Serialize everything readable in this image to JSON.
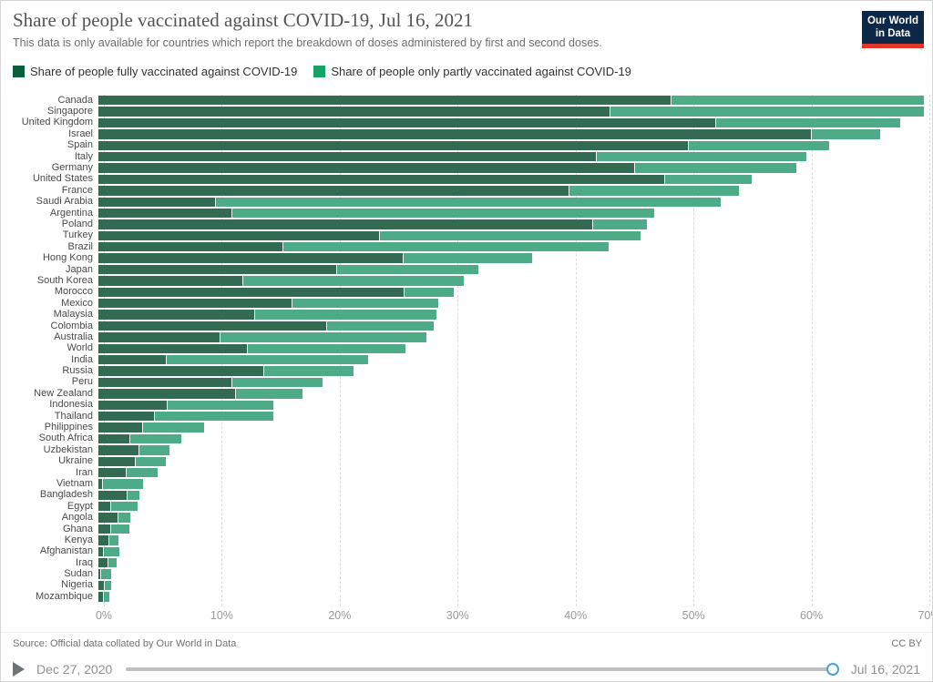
{
  "header": {
    "title": "Share of people vaccinated against COVID-19, Jul 16, 2021",
    "subtitle": "This data is only available for countries which report the breakdown of doses administered by first and second doses.",
    "logo": {
      "line1": "Our World",
      "line2": "in Data",
      "bg_color": "#0d2847",
      "stripe_color": "#e0362b"
    }
  },
  "legend": {
    "items": [
      {
        "label": "Share of people fully vaccinated against COVID-19",
        "color": "#0a5e3a"
      },
      {
        "label": "Share of people only partly vaccinated against COVID-19",
        "color": "#16a26b"
      }
    ]
  },
  "chart_data": {
    "type": "bar",
    "orientation": "horizontal",
    "stacked": true,
    "grid": "dashed-vertical",
    "xlim": [
      0,
      70
    ],
    "xticks": [
      0,
      10,
      20,
      30,
      40,
      50,
      60,
      70
    ],
    "xtick_suffix": "%",
    "categories": [
      "Canada",
      "Singapore",
      "United Kingdom",
      "Israel",
      "Spain",
      "Italy",
      "Germany",
      "United States",
      "France",
      "Saudi Arabia",
      "Argentina",
      "Poland",
      "Turkey",
      "Brazil",
      "Hong Kong",
      "Japan",
      "South Korea",
      "Morocco",
      "Mexico",
      "Malaysia",
      "Colombia",
      "Australia",
      "World",
      "India",
      "Russia",
      "Peru",
      "New Zealand",
      "Indonesia",
      "Thailand",
      "Philippines",
      "South Africa",
      "Uzbekistan",
      "Ukraine",
      "Iran",
      "Vietnam",
      "Bangladesh",
      "Egypt",
      "Angola",
      "Ghana",
      "Kenya",
      "Afghanistan",
      "Iraq",
      "Sudan",
      "Nigeria",
      "Mozambique"
    ],
    "series": [
      {
        "name": "Share of people fully vaccinated against COVID-19",
        "color": "#336a52",
        "values": [
          48.5,
          43.4,
          52.3,
          60.4,
          50.0,
          42.2,
          45.4,
          48.0,
          39.9,
          9.9,
          11.3,
          41.9,
          23.8,
          15.6,
          25.8,
          20.2,
          12.2,
          25.9,
          16.4,
          13.2,
          19.3,
          10.3,
          12.6,
          5.7,
          14.0,
          11.3,
          11.6,
          5.8,
          4.7,
          3.7,
          2.6,
          3.4,
          3.1,
          2.3,
          0.3,
          2.4,
          1.0,
          1.6,
          1.0,
          0.85,
          0.35,
          0.75,
          0.15,
          0.5,
          0.4
        ]
      },
      {
        "name": "Share of people only partly vaccinated against COVID-19",
        "color": "#4dab87",
        "values": [
          21.5,
          26.7,
          15.7,
          5.9,
          12.0,
          17.8,
          13.8,
          7.4,
          14.4,
          42.9,
          35.8,
          4.6,
          22.2,
          27.7,
          11.0,
          12.0,
          18.8,
          4.2,
          12.4,
          15.5,
          9.1,
          17.5,
          13.4,
          17.2,
          7.6,
          7.7,
          5.7,
          9.0,
          10.1,
          5.3,
          4.4,
          2.6,
          2.6,
          2.7,
          3.5,
          1.1,
          2.3,
          1.1,
          1.6,
          0.85,
          1.4,
          0.8,
          0.95,
          0.55,
          0.55
        ]
      }
    ]
  },
  "footer": {
    "source": "Source: Official data collated by Our World in Data",
    "license": "CC BY"
  },
  "timeline": {
    "start_label": "Dec 27, 2020",
    "end_label": "Jul 16, 2021",
    "handle_color": "#4a9fdd"
  }
}
